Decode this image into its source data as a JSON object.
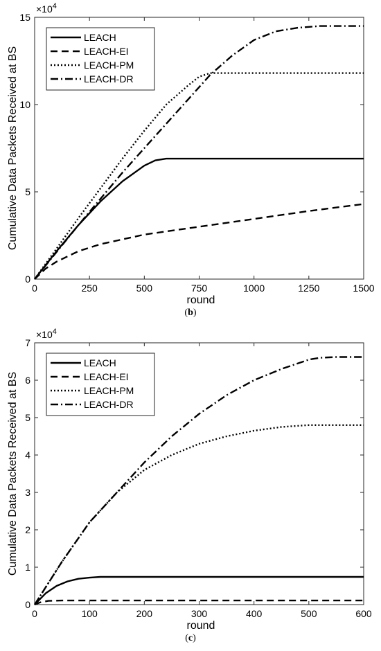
{
  "chart_data": [
    {
      "panel": "(b)",
      "caption_prefix": "(",
      "caption_letter": "b",
      "caption_suffix": ")",
      "type": "line",
      "xlabel": "round",
      "ylabel": "Cumulative  Data Packets Received at BS",
      "exponent_base": "×10",
      "exponent_power": "4",
      "xlim": [
        0,
        1500
      ],
      "ylim": [
        0,
        15
      ],
      "xticks": [
        0,
        250,
        500,
        750,
        1000,
        1250,
        1500
      ],
      "xtick_labels": [
        "0",
        "250",
        "500",
        "750",
        "1000",
        "1250",
        "1500"
      ],
      "yticks": [
        0,
        5,
        10,
        15
      ],
      "ytick_labels": [
        "0",
        "5",
        "10",
        "15"
      ],
      "grid": false,
      "legend_position": "top-left",
      "series": [
        {
          "name": "LEACH",
          "style": "solid",
          "x": [
            0,
            100,
            200,
            300,
            400,
            500,
            550,
            600,
            750,
            1000,
            1250,
            1500
          ],
          "y": [
            0,
            1.6,
            3.1,
            4.45,
            5.6,
            6.5,
            6.8,
            6.9,
            6.9,
            6.9,
            6.9,
            6.9
          ]
        },
        {
          "name": "LEACH-EI",
          "style": "dashed",
          "x": [
            0,
            50,
            100,
            200,
            300,
            500,
            750,
            1000,
            1250,
            1500
          ],
          "y": [
            0,
            0.6,
            1.0,
            1.6,
            2.0,
            2.55,
            3.0,
            3.45,
            3.9,
            4.3
          ]
        },
        {
          "name": "LEACH-PM",
          "style": "dotted",
          "x": [
            0,
            100,
            200,
            300,
            400,
            500,
            600,
            700,
            750,
            800,
            1000,
            1500
          ],
          "y": [
            0,
            1.75,
            3.5,
            5.2,
            6.9,
            8.5,
            10.0,
            11.1,
            11.6,
            11.8,
            11.8,
            11.8
          ]
        },
        {
          "name": "LEACH-DR",
          "style": "dashdot",
          "x": [
            0,
            100,
            200,
            300,
            400,
            500,
            600,
            700,
            800,
            900,
            1000,
            1100,
            1200,
            1300,
            1500
          ],
          "y": [
            0,
            1.55,
            3.1,
            4.6,
            6.1,
            7.5,
            8.9,
            10.3,
            11.7,
            12.8,
            13.7,
            14.2,
            14.4,
            14.5,
            14.5
          ]
        }
      ]
    },
    {
      "panel": "(c)",
      "caption_prefix": "(",
      "caption_letter": "c",
      "caption_suffix": ")",
      "type": "line",
      "xlabel": "round",
      "ylabel": "Cumulative  Data Packets Received at BS",
      "exponent_base": "×10",
      "exponent_power": "4",
      "xlim": [
        0,
        600
      ],
      "ylim": [
        0,
        7
      ],
      "xticks": [
        0,
        100,
        200,
        300,
        400,
        500,
        600
      ],
      "xtick_labels": [
        "0",
        "100",
        "200",
        "300",
        "400",
        "500",
        "600"
      ],
      "yticks": [
        0,
        1,
        2,
        3,
        4,
        5,
        6,
        7
      ],
      "ytick_labels": [
        "0",
        "1",
        "2",
        "3",
        "4",
        "5",
        "6",
        "7"
      ],
      "grid": false,
      "legend_position": "top-left",
      "series": [
        {
          "name": "LEACH",
          "style": "solid",
          "x": [
            0,
            20,
            40,
            60,
            80,
            100,
            120,
            140,
            200,
            400,
            600
          ],
          "y": [
            0,
            0.3,
            0.5,
            0.62,
            0.69,
            0.72,
            0.74,
            0.74,
            0.74,
            0.74,
            0.74
          ]
        },
        {
          "name": "LEACH-EI",
          "style": "dashed",
          "x": [
            0,
            10,
            25,
            50,
            100,
            300,
            600
          ],
          "y": [
            0,
            0.06,
            0.1,
            0.11,
            0.11,
            0.11,
            0.11
          ]
        },
        {
          "name": "LEACH-PM",
          "style": "dotted",
          "x": [
            0,
            50,
            100,
            150,
            200,
            250,
            300,
            350,
            400,
            450,
            500,
            550,
            600
          ],
          "y": [
            0,
            1.15,
            2.2,
            3.0,
            3.6,
            4.0,
            4.3,
            4.5,
            4.65,
            4.75,
            4.8,
            4.8,
            4.8
          ]
        },
        {
          "name": "LEACH-DR",
          "style": "dashdot",
          "x": [
            0,
            50,
            100,
            150,
            200,
            250,
            300,
            350,
            400,
            450,
            500,
            520,
            550,
            600
          ],
          "y": [
            0,
            1.15,
            2.2,
            3.0,
            3.8,
            4.5,
            5.1,
            5.6,
            6.0,
            6.3,
            6.55,
            6.6,
            6.62,
            6.62
          ]
        }
      ]
    }
  ]
}
